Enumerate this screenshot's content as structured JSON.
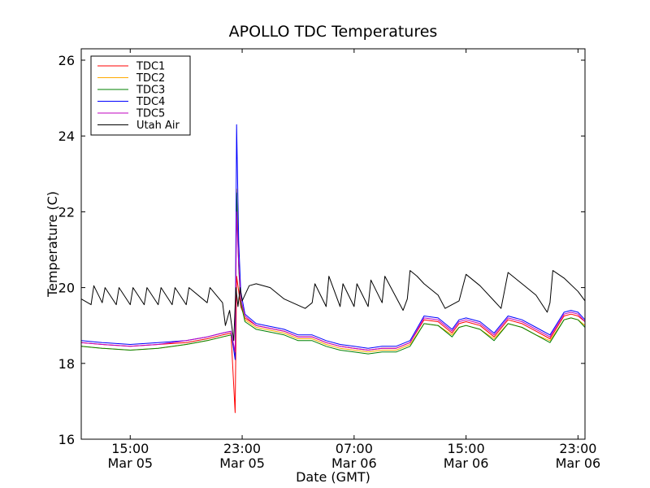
{
  "chart_data": {
    "type": "line",
    "title": "APOLLO TDC Temperatures",
    "xlabel": "Date (GMT)",
    "ylabel": "Temperature (C)",
    "x_units": "hours since Mar 05 00:00 GMT",
    "xlim": [
      11.5,
      47.5
    ],
    "ylim": [
      16,
      26.3
    ],
    "grid": false,
    "legend_position": "top-left",
    "x_ticks": [
      {
        "value": 15,
        "time": "15:00",
        "date": "Mar 05"
      },
      {
        "value": 23,
        "time": "23:00",
        "date": "Mar 05"
      },
      {
        "value": 31,
        "time": "07:00",
        "date": "Mar 06"
      },
      {
        "value": 39,
        "time": "15:00",
        "date": "Mar 06"
      },
      {
        "value": 47,
        "time": "23:00",
        "date": "Mar 06"
      }
    ],
    "y_ticks": [
      16,
      18,
      20,
      22,
      24,
      26
    ],
    "series": [
      {
        "name": "TDC1",
        "color": "#ff0000",
        "x": [
          11.5,
          13,
          15,
          17,
          19,
          20.5,
          21.6,
          22.2,
          22.5,
          22.6,
          22.75,
          22.9,
          23.2,
          24,
          26,
          27,
          28,
          29,
          30,
          31,
          32,
          33,
          34,
          35,
          36,
          37,
          38,
          38.5,
          39,
          40,
          41,
          42,
          43,
          44,
          45,
          46,
          46.5,
          47,
          47.5
        ],
        "y": [
          18.55,
          18.5,
          18.45,
          18.5,
          18.55,
          18.65,
          18.75,
          18.8,
          16.7,
          20.3,
          19.9,
          19.5,
          19.2,
          19.0,
          18.85,
          18.7,
          18.7,
          18.55,
          18.45,
          18.4,
          18.35,
          18.4,
          18.4,
          18.55,
          19.15,
          19.1,
          18.8,
          19.05,
          19.1,
          19.0,
          18.7,
          19.15,
          19.05,
          18.85,
          18.65,
          19.25,
          19.3,
          19.25,
          19.1
        ]
      },
      {
        "name": "TDC2",
        "color": "#ffaa00",
        "x": [
          11.5,
          13,
          15,
          17,
          19,
          20.5,
          21.6,
          22.2,
          22.5,
          22.6,
          22.75,
          22.9,
          23.2,
          24,
          26,
          27,
          28,
          29,
          30,
          31,
          32,
          33,
          34,
          35,
          36,
          37,
          38,
          38.5,
          39,
          40,
          41,
          42,
          43,
          44,
          45,
          46,
          46.5,
          47,
          47.5
        ],
        "y": [
          18.45,
          18.4,
          18.35,
          18.4,
          18.5,
          18.6,
          18.7,
          18.75,
          18.2,
          22.6,
          20.6,
          19.7,
          19.15,
          18.95,
          18.8,
          18.65,
          18.65,
          18.5,
          18.4,
          18.35,
          18.3,
          18.35,
          18.35,
          18.5,
          19.05,
          19.0,
          18.75,
          18.95,
          19.0,
          18.9,
          18.65,
          19.05,
          18.95,
          18.75,
          18.6,
          19.15,
          19.2,
          19.15,
          19.0
        ]
      },
      {
        "name": "TDC3",
        "color": "#008000",
        "x": [
          11.5,
          13,
          15,
          17,
          19,
          20.5,
          21.6,
          22.2,
          22.5,
          22.6,
          22.75,
          22.9,
          23.2,
          24,
          26,
          27,
          28,
          29,
          30,
          31,
          32,
          33,
          34,
          35,
          36,
          37,
          38,
          38.5,
          39,
          40,
          41,
          42,
          43,
          44,
          45,
          46,
          46.5,
          47,
          47.5
        ],
        "y": [
          18.45,
          18.4,
          18.35,
          18.4,
          18.5,
          18.6,
          18.7,
          18.75,
          18.3,
          22.5,
          20.5,
          19.6,
          19.1,
          18.9,
          18.75,
          18.6,
          18.6,
          18.45,
          18.35,
          18.3,
          18.25,
          18.3,
          18.3,
          18.45,
          19.05,
          19.0,
          18.7,
          18.95,
          19.0,
          18.9,
          18.6,
          19.05,
          18.95,
          18.75,
          18.55,
          19.15,
          19.2,
          19.15,
          18.95
        ]
      },
      {
        "name": "TDC4",
        "color": "#0000ff",
        "x": [
          11.5,
          13,
          15,
          17,
          19,
          20.5,
          21.6,
          22.2,
          22.5,
          22.6,
          22.75,
          22.9,
          23.2,
          24,
          26,
          27,
          28,
          29,
          30,
          31,
          32,
          33,
          34,
          35,
          36,
          37,
          38,
          38.5,
          39,
          40,
          41,
          42,
          43,
          44,
          45,
          46,
          46.5,
          47,
          47.5
        ],
        "y": [
          18.6,
          18.55,
          18.5,
          18.55,
          18.6,
          18.7,
          18.8,
          18.85,
          18.1,
          24.3,
          21.2,
          19.9,
          19.3,
          19.05,
          18.9,
          18.75,
          18.75,
          18.6,
          18.5,
          18.45,
          18.4,
          18.45,
          18.45,
          18.6,
          19.25,
          19.2,
          18.9,
          19.15,
          19.2,
          19.1,
          18.8,
          19.25,
          19.15,
          18.95,
          18.75,
          19.35,
          19.4,
          19.35,
          19.15
        ]
      },
      {
        "name": "TDC5",
        "color": "#bf00bf",
        "x": [
          11.5,
          13,
          15,
          17,
          19,
          20.5,
          21.6,
          22.2,
          22.5,
          22.6,
          22.75,
          22.9,
          23.2,
          24,
          26,
          27,
          28,
          29,
          30,
          31,
          32,
          33,
          34,
          35,
          36,
          37,
          38,
          38.5,
          39,
          40,
          41,
          42,
          43,
          44,
          45,
          46,
          46.5,
          47,
          47.5
        ],
        "y": [
          18.55,
          18.5,
          18.45,
          18.5,
          18.6,
          18.7,
          18.8,
          18.85,
          18.3,
          22.0,
          20.6,
          19.7,
          19.25,
          19.0,
          18.85,
          18.7,
          18.7,
          18.55,
          18.45,
          18.4,
          18.35,
          18.4,
          18.4,
          18.55,
          19.2,
          19.15,
          18.85,
          19.1,
          19.15,
          19.05,
          18.75,
          19.2,
          19.1,
          18.9,
          18.7,
          19.3,
          19.35,
          19.3,
          19.1
        ]
      },
      {
        "name": "Utah Air",
        "color": "#000000",
        "x": [
          11.5,
          12.2,
          12.4,
          13.0,
          13.2,
          14.0,
          14.2,
          15.0,
          15.2,
          16.0,
          16.2,
          17.0,
          17.2,
          18.0,
          18.2,
          19.0,
          19.2,
          20.5,
          20.7,
          21.6,
          21.8,
          22.1,
          22.4,
          22.55,
          22.7,
          22.85,
          23.0,
          23.5,
          24.0,
          25.0,
          26.0,
          27.5,
          28.0,
          28.2,
          29.0,
          29.2,
          30.0,
          30.2,
          31.0,
          31.2,
          32.0,
          32.2,
          33.0,
          33.2,
          34.5,
          34.8,
          35.0,
          35.5,
          36.0,
          37.0,
          37.5,
          38.5,
          39.0,
          40.0,
          41.0,
          41.5,
          42.0,
          43.0,
          44.0,
          44.8,
          45.0,
          45.2,
          46.0,
          47.0,
          47.5
        ],
        "y": [
          19.7,
          19.55,
          20.05,
          19.6,
          20.0,
          19.55,
          20.0,
          19.55,
          20.0,
          19.55,
          20.0,
          19.55,
          20.0,
          19.55,
          20.0,
          19.55,
          20.0,
          19.6,
          20.0,
          19.6,
          19.0,
          19.4,
          18.6,
          20.0,
          19.5,
          20.0,
          19.65,
          20.05,
          20.1,
          20.0,
          19.7,
          19.45,
          19.6,
          20.1,
          19.5,
          20.3,
          19.5,
          20.1,
          19.5,
          20.1,
          19.5,
          20.2,
          19.6,
          20.3,
          19.4,
          19.7,
          20.45,
          20.3,
          20.1,
          19.8,
          19.45,
          19.65,
          20.35,
          20.05,
          19.65,
          19.45,
          20.4,
          20.1,
          19.8,
          19.35,
          19.6,
          20.45,
          20.25,
          19.9,
          19.65
        ]
      }
    ]
  }
}
